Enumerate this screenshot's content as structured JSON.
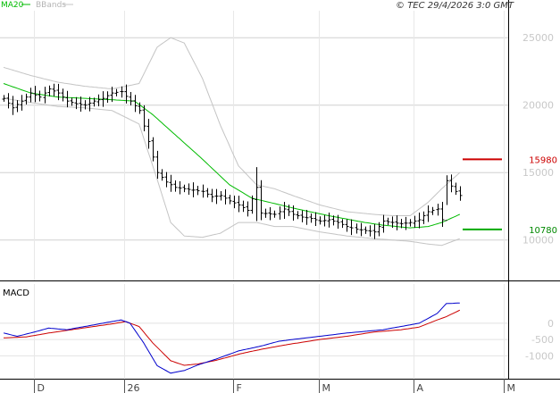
{
  "legend": {
    "ma_label": "MA20",
    "bb_label": "BBands",
    "ma_color": "#00bb00",
    "bb_color": "#c4c4c4"
  },
  "copyright": "© TEC 29/4/2026 3:0 GMT",
  "macd_title": "MACD",
  "colors": {
    "price": "#000000",
    "ma": "#00bb00",
    "bbands": "#c4c4c4",
    "resistance": "#cc0000",
    "support": "#00aa00",
    "macd": "#0000cc",
    "signal": "#cc0000",
    "grid": "#d0d0d0"
  },
  "chart_data": [
    {
      "type": "line",
      "ylim": [
        7000,
        27000
      ],
      "yticks": [
        {
          "value": 10000,
          "label": "10000"
        },
        {
          "value": 15000,
          "label": "15000"
        },
        {
          "value": 20000,
          "label": "20000"
        },
        {
          "value": 25000,
          "label": "25000"
        }
      ],
      "xticks": [
        {
          "idx": 0,
          "label": "D"
        },
        {
          "idx": 20,
          "label": "26"
        },
        {
          "idx": 44,
          "label": "F"
        },
        {
          "idx": 63,
          "label": "M"
        },
        {
          "idx": 84,
          "label": "A"
        },
        {
          "idx": 104,
          "label": "M"
        }
      ],
      "levels": [
        {
          "name": "resistance",
          "value": 15980,
          "label": "15980"
        },
        {
          "name": "support",
          "value": 10780,
          "label": "10780"
        }
      ],
      "price_anchors": [
        [
          0,
          20500
        ],
        [
          2,
          19800
        ],
        [
          4,
          20300
        ],
        [
          6,
          20900
        ],
        [
          8,
          20600
        ],
        [
          10,
          21200
        ],
        [
          12,
          20900
        ],
        [
          14,
          20300
        ],
        [
          16,
          20100
        ],
        [
          18,
          20000
        ],
        [
          20,
          20300
        ],
        [
          22,
          20500
        ],
        [
          24,
          20900
        ],
        [
          26,
          21000
        ],
        [
          28,
          20300
        ],
        [
          30,
          19600
        ],
        [
          32,
          17300
        ],
        [
          34,
          15000
        ],
        [
          36,
          14300
        ],
        [
          38,
          13900
        ],
        [
          40,
          13800
        ],
        [
          42,
          13700
        ],
        [
          44,
          13600
        ],
        [
          46,
          13200
        ],
        [
          48,
          13300
        ],
        [
          50,
          12900
        ],
        [
          52,
          12600
        ],
        [
          54,
          12200
        ],
        [
          56,
          13900
        ],
        [
          57,
          12000
        ],
        [
          60,
          11900
        ],
        [
          62,
          12300
        ],
        [
          64,
          11900
        ],
        [
          66,
          11700
        ],
        [
          68,
          11600
        ],
        [
          70,
          11400
        ],
        [
          72,
          11500
        ],
        [
          74,
          11300
        ],
        [
          76,
          11000
        ],
        [
          78,
          10800
        ],
        [
          80,
          10700
        ],
        [
          82,
          10600
        ],
        [
          84,
          11400
        ],
        [
          86,
          11300
        ],
        [
          88,
          11200
        ],
        [
          90,
          11300
        ],
        [
          92,
          11500
        ],
        [
          94,
          12100
        ],
        [
          96,
          12300
        ],
        [
          97,
          11500
        ],
        [
          98,
          14400
        ],
        [
          100,
          13600
        ],
        [
          101,
          13300
        ]
      ],
      "ma_anchors": [
        [
          0,
          21600
        ],
        [
          6,
          20900
        ],
        [
          12,
          20600
        ],
        [
          18,
          20500
        ],
        [
          24,
          20400
        ],
        [
          29,
          20300
        ],
        [
          33,
          19300
        ],
        [
          38,
          17800
        ],
        [
          44,
          16000
        ],
        [
          50,
          14100
        ],
        [
          55,
          13100
        ],
        [
          60,
          12700
        ],
        [
          65,
          12300
        ],
        [
          72,
          11800
        ],
        [
          80,
          11300
        ],
        [
          84,
          11100
        ],
        [
          90,
          10900
        ],
        [
          94,
          11000
        ],
        [
          97,
          11300
        ],
        [
          101,
          11900
        ]
      ],
      "bb_upper_anchors": [
        [
          0,
          22800
        ],
        [
          6,
          22200
        ],
        [
          12,
          21700
        ],
        [
          18,
          21400
        ],
        [
          24,
          21200
        ],
        [
          30,
          21600
        ],
        [
          34,
          24300
        ],
        [
          37,
          25000
        ],
        [
          40,
          24600
        ],
        [
          44,
          22000
        ],
        [
          48,
          18500
        ],
        [
          52,
          15500
        ],
        [
          56,
          14100
        ],
        [
          60,
          13800
        ],
        [
          64,
          13300
        ],
        [
          70,
          12600
        ],
        [
          76,
          12100
        ],
        [
          82,
          11900
        ],
        [
          86,
          11800
        ],
        [
          90,
          11800
        ],
        [
          94,
          12800
        ],
        [
          97,
          13800
        ],
        [
          101,
          15000
        ]
      ],
      "bb_lower_anchors": [
        [
          0,
          20500
        ],
        [
          6,
          20200
        ],
        [
          12,
          19900
        ],
        [
          18,
          19800
        ],
        [
          24,
          19600
        ],
        [
          30,
          18600
        ],
        [
          34,
          14500
        ],
        [
          37,
          11300
        ],
        [
          40,
          10300
        ],
        [
          44,
          10200
        ],
        [
          48,
          10500
        ],
        [
          52,
          11300
        ],
        [
          56,
          11300
        ],
        [
          60,
          11000
        ],
        [
          64,
          11000
        ],
        [
          70,
          10600
        ],
        [
          76,
          10300
        ],
        [
          82,
          10100
        ],
        [
          86,
          10000
        ],
        [
          90,
          9900
        ],
        [
          94,
          9700
        ],
        [
          97,
          9600
        ],
        [
          101,
          10100
        ]
      ]
    },
    {
      "type": "line",
      "ylim": [
        -1700,
        1200
      ],
      "yticks": [
        {
          "value": 0,
          "label": "0"
        },
        {
          "value": -500,
          "label": "-500"
        },
        {
          "value": -1000,
          "label": "-1000"
        }
      ],
      "macd_anchors": [
        [
          0,
          -300
        ],
        [
          3,
          -400
        ],
        [
          6,
          -300
        ],
        [
          10,
          -150
        ],
        [
          14,
          -200
        ],
        [
          18,
          -100
        ],
        [
          22,
          0
        ],
        [
          26,
          100
        ],
        [
          28,
          0
        ],
        [
          31,
          -600
        ],
        [
          34,
          -1300
        ],
        [
          37,
          -1530
        ],
        [
          40,
          -1450
        ],
        [
          43,
          -1280
        ],
        [
          47,
          -1100
        ],
        [
          52,
          -850
        ],
        [
          57,
          -700
        ],
        [
          61,
          -550
        ],
        [
          64,
          -500
        ],
        [
          70,
          -400
        ],
        [
          76,
          -300
        ],
        [
          80,
          -250
        ],
        [
          84,
          -200
        ],
        [
          88,
          -100
        ],
        [
          92,
          0
        ],
        [
          96,
          300
        ],
        [
          98,
          600
        ],
        [
          101,
          620
        ]
      ],
      "signal_anchors": [
        [
          0,
          -450
        ],
        [
          5,
          -420
        ],
        [
          10,
          -300
        ],
        [
          15,
          -200
        ],
        [
          20,
          -100
        ],
        [
          24,
          -20
        ],
        [
          27,
          50
        ],
        [
          30,
          -100
        ],
        [
          33,
          -600
        ],
        [
          37,
          -1150
        ],
        [
          40,
          -1290
        ],
        [
          43,
          -1250
        ],
        [
          47,
          -1140
        ],
        [
          52,
          -950
        ],
        [
          57,
          -800
        ],
        [
          63,
          -650
        ],
        [
          70,
          -500
        ],
        [
          76,
          -400
        ],
        [
          82,
          -270
        ],
        [
          88,
          -200
        ],
        [
          92,
          -120
        ],
        [
          96,
          100
        ],
        [
          98,
          200
        ],
        [
          101,
          400
        ]
      ]
    }
  ]
}
